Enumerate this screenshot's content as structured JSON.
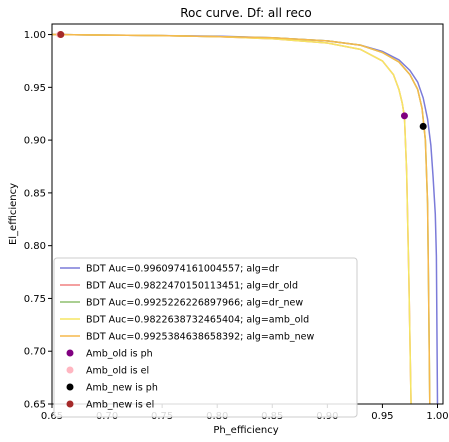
{
  "chart_data": {
    "type": "line",
    "title": "Roc curve. Df: all reco",
    "xlabel": "Ph_efficiency",
    "ylabel": "El_efficiency",
    "xlim": [
      0.65,
      1.005
    ],
    "ylim": [
      0.65,
      1.01
    ],
    "xticks": [
      "0.65",
      "0.70",
      "0.75",
      "0.80",
      "0.85",
      "0.90",
      "0.95",
      "1.00"
    ],
    "yticks": [
      "0.65",
      "0.70",
      "0.75",
      "0.80",
      "0.85",
      "0.90",
      "0.95",
      "1.00"
    ],
    "grid": false,
    "legend_position": "lower-left",
    "series": [
      {
        "name": "BDT Auc=0.9960974161004557; alg=dr",
        "color": "#7b7bd9",
        "x": [
          0.65,
          0.7,
          0.75,
          0.8,
          0.85,
          0.9,
          0.93,
          0.95,
          0.965,
          0.975,
          0.982,
          0.987,
          0.991,
          0.994,
          0.996,
          0.998,
          0.999,
          1.0
        ],
        "y": [
          1.0,
          0.9995,
          0.999,
          0.9985,
          0.997,
          0.994,
          0.99,
          0.984,
          0.976,
          0.966,
          0.955,
          0.94,
          0.92,
          0.895,
          0.865,
          0.83,
          0.79,
          0.65
        ]
      },
      {
        "name": "BDT Auc=0.9822470150113451; alg=dr_old",
        "color": "#f08080",
        "x": [
          0.65,
          0.7,
          0.75,
          0.8,
          0.85,
          0.9,
          0.93,
          0.95,
          0.96,
          0.965,
          0.968,
          0.97,
          0.972,
          0.974,
          0.976
        ],
        "y": [
          1.0,
          0.9995,
          0.999,
          0.998,
          0.996,
          0.992,
          0.986,
          0.975,
          0.962,
          0.948,
          0.935,
          0.922,
          0.87,
          0.77,
          0.65
        ]
      },
      {
        "name": "BDT Auc=0.9925226226897966; alg=dr_new",
        "color": "#8dbf6e",
        "x": [
          0.65,
          0.7,
          0.75,
          0.8,
          0.85,
          0.9,
          0.93,
          0.95,
          0.965,
          0.975,
          0.982,
          0.986,
          0.989,
          0.991,
          0.992,
          0.993
        ],
        "y": [
          1.0,
          0.9995,
          0.999,
          0.998,
          0.997,
          0.994,
          0.99,
          0.983,
          0.974,
          0.962,
          0.948,
          0.93,
          0.9,
          0.84,
          0.75,
          0.65
        ]
      },
      {
        "name": "BDT Auc=0.9822638732465404; alg=amb_old",
        "color": "#f5e663",
        "x": [
          0.65,
          0.7,
          0.75,
          0.8,
          0.85,
          0.9,
          0.93,
          0.95,
          0.96,
          0.965,
          0.968,
          0.97,
          0.972,
          0.974,
          0.976
        ],
        "y": [
          1.0,
          0.9995,
          0.999,
          0.998,
          0.996,
          0.992,
          0.986,
          0.975,
          0.962,
          0.948,
          0.935,
          0.922,
          0.87,
          0.77,
          0.65
        ]
      },
      {
        "name": "BDT Auc=0.9925384638658392; alg=amb_new",
        "color": "#f5b94c",
        "x": [
          0.65,
          0.7,
          0.75,
          0.8,
          0.85,
          0.9,
          0.93,
          0.95,
          0.965,
          0.975,
          0.982,
          0.986,
          0.989,
          0.991,
          0.992,
          0.993
        ],
        "y": [
          1.0,
          0.9995,
          0.999,
          0.998,
          0.997,
          0.994,
          0.99,
          0.983,
          0.974,
          0.962,
          0.948,
          0.93,
          0.9,
          0.84,
          0.75,
          0.65
        ]
      }
    ],
    "points": [
      {
        "name": "Amb_old is ph",
        "color": "#800080",
        "x": 0.97,
        "y": 0.923
      },
      {
        "name": "Amb_old is el",
        "color": "#ffb6c1",
        "x": 0.657,
        "y": 1.0
      },
      {
        "name": "Amb_new is ph",
        "color": "#000000",
        "x": 0.987,
        "y": 0.913
      },
      {
        "name": "Amb_new is el",
        "color": "#a52a2a",
        "x": 0.658,
        "y": 1.0
      }
    ]
  }
}
